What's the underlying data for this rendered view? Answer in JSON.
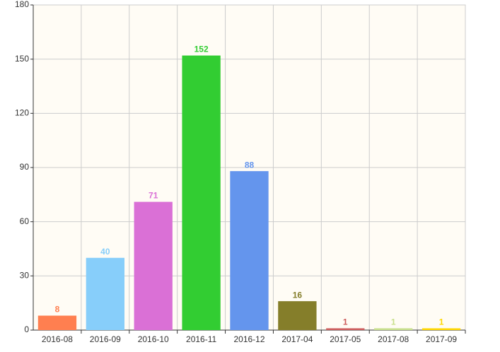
{
  "chart_data": {
    "type": "bar",
    "categories": [
      "2016-08",
      "2016-09",
      "2016-10",
      "2016-11",
      "2016-12",
      "2017-04",
      "2017-05",
      "2017-08",
      "2017-09"
    ],
    "values": [
      8,
      40,
      71,
      152,
      88,
      16,
      1,
      1,
      1
    ],
    "colors": [
      "#ff7f50",
      "#87cefa",
      "#da70d6",
      "#32cd32",
      "#6495ed",
      "#857e2a",
      "#cd5c5c",
      "#c8e08c",
      "#ffd700"
    ],
    "ylim": [
      0,
      180
    ],
    "yticks": [
      0,
      30,
      60,
      90,
      120,
      150,
      180
    ],
    "grid": true
  }
}
